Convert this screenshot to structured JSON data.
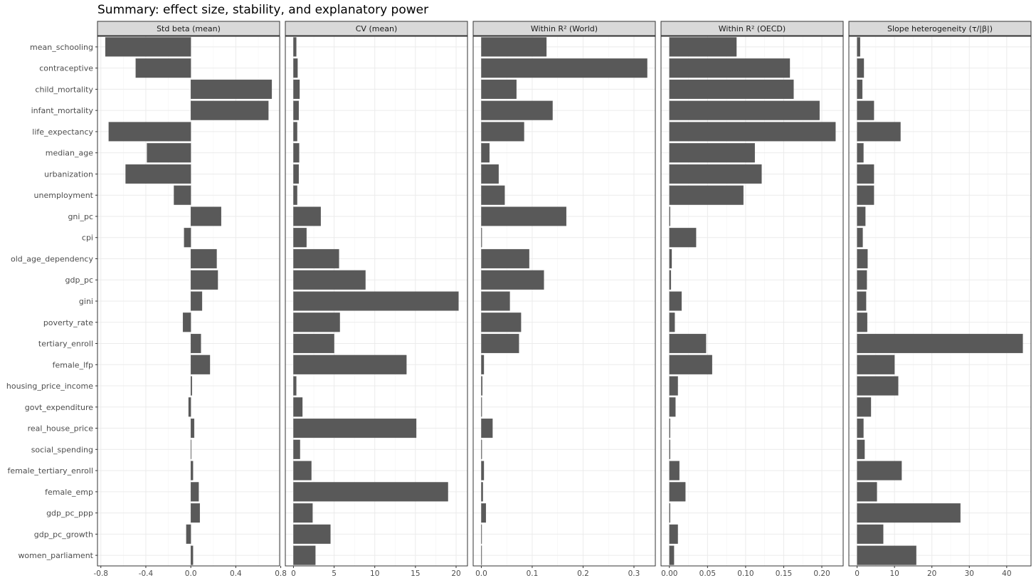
{
  "chart_data": {
    "type": "bar",
    "orientation": "horizontal",
    "title": "Summary: effect size, stability, and explanatory power",
    "categories": [
      "mean_schooling",
      "contraceptive",
      "child_mortality",
      "infant_mortality",
      "life_expectancy",
      "median_age",
      "urbanization",
      "unemployment",
      "gni_pc",
      "cpi",
      "old_age_dependency",
      "gdp_pc",
      "gini",
      "poverty_rate",
      "tertiary_enroll",
      "female_lfp",
      "housing_price_income",
      "govt_expenditure",
      "real_house_price",
      "social_spending",
      "female_tertiary_enroll",
      "female_emp",
      "gdp_pc_ppp",
      "gdp_pc_growth",
      "women_parliament"
    ],
    "facets": [
      {
        "name": "Std beta (mean)",
        "xlim": [
          -0.83,
          0.79
        ],
        "ticks": [
          -0.8,
          -0.4,
          0.0,
          0.4,
          0.8
        ],
        "tick_labels": [
          "-0.8",
          "-0.4",
          "0.0",
          "0.4",
          "0.8"
        ],
        "values": [
          -0.76,
          -0.49,
          0.72,
          0.69,
          -0.73,
          -0.39,
          -0.58,
          -0.15,
          0.27,
          -0.06,
          0.23,
          0.24,
          0.1,
          -0.07,
          0.09,
          0.17,
          0.01,
          -0.02,
          0.03,
          0.0,
          0.02,
          0.07,
          0.08,
          -0.04,
          0.02
        ]
      },
      {
        "name": "CV (mean)",
        "xlim": [
          -1.0,
          21.4
        ],
        "ticks": [
          0,
          5,
          10,
          15,
          20
        ],
        "tick_labels": [
          "0",
          "5",
          "10",
          "15",
          "20"
        ],
        "values": [
          0.35,
          0.5,
          0.75,
          0.65,
          0.45,
          0.7,
          0.65,
          0.45,
          3.35,
          1.6,
          5.6,
          8.85,
          20.3,
          5.7,
          5.0,
          13.9,
          0.35,
          1.1,
          15.1,
          0.8,
          2.2,
          19.0,
          2.35,
          4.55,
          2.7
        ]
      },
      {
        "name": "Within R² (World)",
        "xlim": [
          -0.016,
          0.342
        ],
        "ticks": [
          0.0,
          0.1,
          0.2,
          0.3
        ],
        "tick_labels": [
          "0.0",
          "0.1",
          "0.2",
          "0.3"
        ],
        "values": [
          0.128,
          0.326,
          0.069,
          0.14,
          0.084,
          0.016,
          0.034,
          0.046,
          0.167,
          0.001,
          0.094,
          0.123,
          0.056,
          0.078,
          0.074,
          0.005,
          0.002,
          0.001,
          0.022,
          0.001,
          0.005,
          0.003,
          0.009,
          0.0,
          0.0
        ]
      },
      {
        "name": "Within R² (OECD)",
        "xlim": [
          -0.011,
          0.228
        ],
        "ticks": [
          0.0,
          0.05,
          0.1,
          0.15,
          0.2
        ],
        "tick_labels": [
          "0.00",
          "0.05",
          "0.10",
          "0.15",
          "0.20"
        ],
        "values": [
          0.088,
          0.158,
          0.163,
          0.197,
          0.218,
          0.112,
          0.121,
          0.097,
          0.001,
          0.035,
          0.003,
          0.002,
          0.016,
          0.007,
          0.048,
          0.056,
          0.011,
          0.008,
          0.001,
          0.001,
          0.013,
          0.021,
          0.001,
          0.011,
          0.006
        ]
      },
      {
        "name": "Slope heterogeneity (τ/|β|)",
        "xlim": [
          -2.2,
          46.5
        ],
        "ticks": [
          0,
          10,
          20,
          30,
          40
        ],
        "tick_labels": [
          "0",
          "10",
          "20",
          "30",
          "40"
        ],
        "values": [
          0.8,
          1.8,
          1.4,
          4.5,
          11.6,
          1.7,
          4.5,
          4.5,
          2.2,
          1.5,
          2.8,
          2.6,
          2.4,
          2.7,
          44.3,
          10.0,
          11.0,
          3.7,
          1.7,
          2.0,
          11.9,
          5.3,
          27.6,
          7.0,
          15.8
        ]
      }
    ]
  }
}
